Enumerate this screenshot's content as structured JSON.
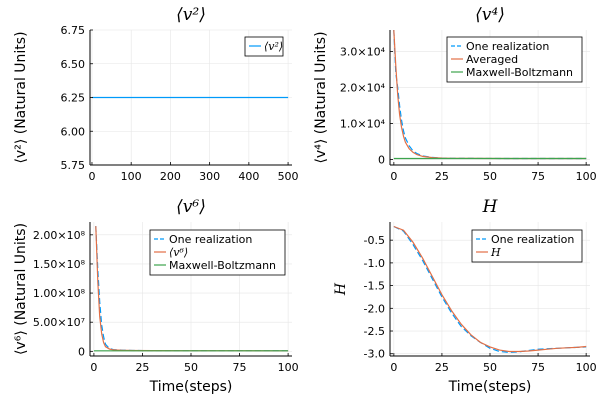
{
  "chart_data": [
    {
      "id": "v2",
      "type": "line",
      "title": "⟨v²⟩",
      "ylabel": "⟨v²⟩ (Natural Units)",
      "xlabel": "",
      "xlim": [
        -5,
        510
      ],
      "ylim": [
        5.75,
        6.75
      ],
      "xticks": [
        0,
        100,
        200,
        300,
        400,
        500
      ],
      "yticks": [
        5.75,
        6.0,
        6.25,
        6.5,
        6.75
      ],
      "ytick_labels": [
        "5.75",
        "6.00",
        "6.25",
        "6.50",
        "6.75"
      ],
      "legend_position": "top-right",
      "grid": true,
      "series": [
        {
          "name": "⟨v²⟩",
          "color": "#009AFA",
          "dash": "solid",
          "x": [
            0,
            500
          ],
          "y": [
            6.25,
            6.25
          ]
        }
      ]
    },
    {
      "id": "v4",
      "type": "line",
      "title": "⟨v⁴⟩",
      "ylabel": "⟨v⁴⟩ (Natural Units)",
      "xlabel": "",
      "xlim": [
        -2,
        102
      ],
      "ylim": [
        -1500,
        36000
      ],
      "xticks": [
        0,
        25,
        50,
        75,
        100
      ],
      "yticks": [
        0,
        10000,
        20000,
        30000
      ],
      "ytick_labels": [
        "0",
        "1.0×10⁴",
        "2.0×10⁴",
        "3.0×10⁴"
      ],
      "legend_position": "top-right",
      "grid": true,
      "series": [
        {
          "name": "One realization",
          "color": "#009AFA",
          "dash": "dashed",
          "x": [
            0,
            1,
            2,
            3,
            4,
            5,
            6,
            8,
            10,
            12,
            15,
            20,
            25,
            30,
            40,
            60,
            80,
            100
          ],
          "y": [
            36000,
            24000,
            20000,
            15000,
            11000,
            8000,
            6000,
            3800,
            2400,
            1700,
            1000,
            600,
            420,
            360,
            320,
            310,
            305,
            300
          ]
        },
        {
          "name": "Averaged",
          "color": "#E26F46",
          "dash": "solid",
          "x": [
            0,
            1,
            2,
            3,
            4,
            5,
            6,
            8,
            10,
            12,
            15,
            20,
            25,
            30,
            40,
            60,
            80,
            100
          ],
          "y": [
            36000,
            26000,
            18000,
            12500,
            9000,
            6500,
            4800,
            3000,
            2000,
            1400,
            900,
            550,
            420,
            360,
            320,
            310,
            305,
            300
          ]
        },
        {
          "name": "Maxwell-Boltzmann",
          "color": "#3DA44D",
          "dash": "solid",
          "x": [
            0,
            100
          ],
          "y": [
            300,
            300
          ]
        }
      ]
    },
    {
      "id": "v6",
      "type": "line",
      "title": "⟨v⁶⟩",
      "ylabel": "⟨v⁶⟩ (Natural Units)",
      "xlabel": "Time(steps)",
      "xlim": [
        -2,
        102
      ],
      "ylim": [
        -8000000,
        222000000
      ],
      "xticks": [
        0,
        25,
        50,
        75,
        100
      ],
      "yticks": [
        0,
        50000000,
        100000000,
        150000000,
        200000000
      ],
      "ytick_labels": [
        "0",
        "5.00×10⁷",
        "1.00×10⁸",
        "1.50×10⁸",
        "2.00×10⁸"
      ],
      "legend_position": "top-right",
      "grid": true,
      "series": [
        {
          "name": "One realization",
          "color": "#009AFA",
          "dash": "dashed",
          "x": [
            1,
            2,
            3,
            4,
            5,
            6,
            8,
            10,
            15,
            20,
            30,
            50,
            75,
            100
          ],
          "y": [
            215000000,
            140000000,
            85000000,
            45000000,
            25000000,
            12000000,
            5000000,
            3000000,
            2000000,
            1500000,
            1200000,
            1100000,
            1050000,
            1000000
          ]
        },
        {
          "name": "⟨v⁶⟩",
          "color": "#E26F46",
          "dash": "solid",
          "x": [
            1,
            2,
            3,
            4,
            5,
            6,
            8,
            10,
            15,
            20,
            30,
            50,
            75,
            100
          ],
          "y": [
            215000000,
            120000000,
            60000000,
            30000000,
            15000000,
            8000000,
            4000000,
            2500000,
            1800000,
            1400000,
            1200000,
            1100000,
            1050000,
            1000000
          ]
        },
        {
          "name": "Maxwell-Boltzmann",
          "color": "#3DA44D",
          "dash": "solid",
          "x": [
            0,
            100
          ],
          "y": [
            1000000,
            1000000
          ]
        }
      ]
    },
    {
      "id": "H",
      "type": "line",
      "title": "H",
      "ylabel": "H",
      "xlabel": "Time(steps)",
      "xlim": [
        -2,
        102
      ],
      "ylim": [
        -3.05,
        -0.1
      ],
      "xticks": [
        0,
        25,
        50,
        75,
        100
      ],
      "yticks": [
        -3.0,
        -2.5,
        -2.0,
        -1.5,
        -1.0,
        -0.5
      ],
      "ytick_labels": [
        "-3.0",
        "-2.5",
        "-2.0",
        "-1.5",
        "-1.0",
        "-0.5"
      ],
      "legend_position": "top-right",
      "grid": true,
      "series": [
        {
          "name": "One realization",
          "color": "#009AFA",
          "dash": "dashed",
          "x": [
            0,
            5,
            10,
            15,
            20,
            25,
            30,
            35,
            40,
            45,
            50,
            55,
            60,
            65,
            70,
            75,
            80,
            85,
            90,
            95,
            100
          ],
          "y": [
            -0.2,
            -0.3,
            -0.6,
            -0.95,
            -1.35,
            -1.75,
            -2.1,
            -2.4,
            -2.6,
            -2.75,
            -2.88,
            -2.95,
            -2.97,
            -2.96,
            -2.93,
            -2.9,
            -2.89,
            -2.88,
            -2.87,
            -2.86,
            -2.85
          ]
        },
        {
          "name": "H",
          "color": "#E26F46",
          "dash": "solid",
          "x": [
            0,
            5,
            10,
            15,
            20,
            25,
            30,
            35,
            40,
            45,
            50,
            55,
            60,
            65,
            70,
            75,
            80,
            85,
            90,
            95,
            100
          ],
          "y": [
            -0.2,
            -0.28,
            -0.55,
            -0.9,
            -1.3,
            -1.7,
            -2.05,
            -2.35,
            -2.58,
            -2.75,
            -2.85,
            -2.92,
            -2.95,
            -2.95,
            -2.94,
            -2.92,
            -2.9,
            -2.88,
            -2.87,
            -2.86,
            -2.84
          ]
        }
      ]
    }
  ]
}
